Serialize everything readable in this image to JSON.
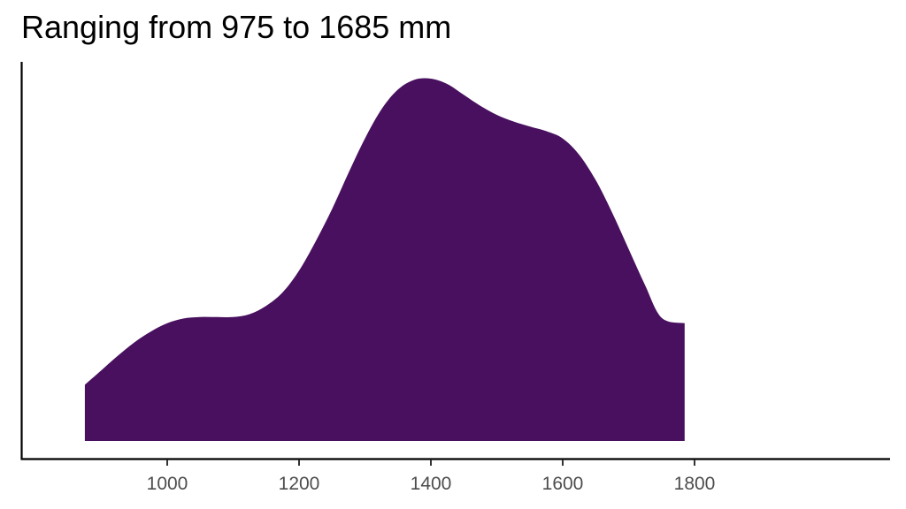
{
  "chart_data": {
    "type": "area",
    "title": "Ranging from 975 to 1685 mm",
    "xlabel": "",
    "ylabel": "",
    "xlim": [
      830,
      1830
    ],
    "ylim": [
      0,
      1.05
    ],
    "x_ticks": [
      1000,
      1200,
      1400,
      1600,
      1800
    ],
    "x_tick_labels": [
      "1000",
      "1200",
      "1400",
      "1600",
      "1800"
    ],
    "grid": false,
    "fill_color": "#48105E",
    "series": [
      {
        "x": [
          875,
          900,
          925,
          950,
          975,
          1000,
          1025,
          1050,
          1075,
          1100,
          1125,
          1150,
          1175,
          1200,
          1225,
          1250,
          1275,
          1300,
          1325,
          1350,
          1375,
          1400,
          1425,
          1450,
          1475,
          1500,
          1525,
          1550,
          1575,
          1600,
          1625,
          1650,
          1675,
          1700,
          1725,
          1750,
          1785
        ],
        "y": [
          0.155,
          0.195,
          0.235,
          0.272,
          0.302,
          0.325,
          0.338,
          0.342,
          0.342,
          0.342,
          0.35,
          0.373,
          0.41,
          0.47,
          0.55,
          0.64,
          0.74,
          0.835,
          0.915,
          0.97,
          0.997,
          1.0,
          0.985,
          0.955,
          0.925,
          0.9,
          0.882,
          0.868,
          0.855,
          0.835,
          0.79,
          0.72,
          0.63,
          0.53,
          0.43,
          0.34,
          0.325
        ]
      }
    ]
  }
}
